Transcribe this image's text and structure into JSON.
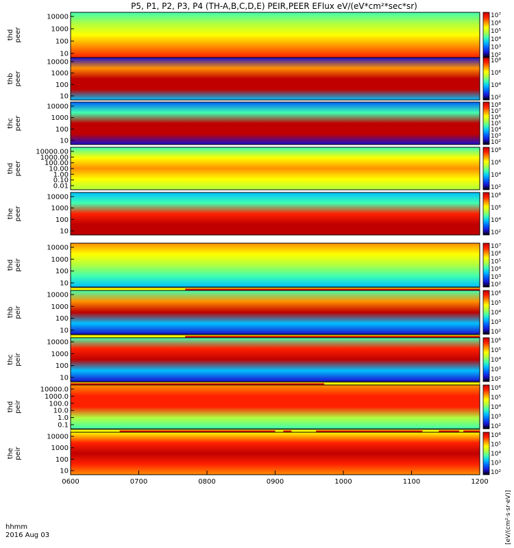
{
  "chart_data": {
    "type": "heatmap",
    "title": "P5, P1, P2, P3, P4 (TH-A,B,C,D,E) PEIR,PEER EFlux eV/(eV*cm²*sec*sr)",
    "time_label_line1": "hhmm",
    "time_label_line2": "2016 Aug 03",
    "x_ticks": [
      "0600",
      "0700",
      "0800",
      "0900",
      "1000",
      "1100",
      "1200"
    ],
    "colorbar_label": "[eV/(cm²·s·sr·eV)]",
    "colormap": [
      "#000000",
      "#1a10d0",
      "#0060ff",
      "#00c0ff",
      "#40ffb0",
      "#b0ff40",
      "#ffff00",
      "#ff9000",
      "#ff2000",
      "#c00000"
    ],
    "panels": [
      {
        "label": "thd peer",
        "y_ticks": [
          "10",
          "100",
          "1000",
          "10000"
        ],
        "cb_ticks": [
          "10²",
          "10³",
          "10⁴",
          "10⁵",
          "10⁶",
          "10⁷"
        ],
        "state_bar": false
      },
      {
        "label": "thb peer",
        "y_ticks": [
          "10",
          "100",
          "1000",
          "10000"
        ],
        "cb_ticks": [
          "10²",
          "10⁴",
          "10⁶",
          "10⁸"
        ],
        "state_bar": false
      },
      {
        "label": "thc peer",
        "y_ticks": [
          "10",
          "100",
          "1000",
          "10000"
        ],
        "cb_ticks": [
          "10²",
          "10³",
          "10⁴",
          "10⁵",
          "10⁶",
          "10⁷",
          "10⁸"
        ],
        "state_bar": false
      },
      {
        "label": "thd peer",
        "y_ticks": [
          "0.01",
          "0.10",
          "1.00",
          "10.00",
          "100.00",
          "1000.00",
          "10000.00"
        ],
        "cb_ticks": [
          "10²",
          "10⁴",
          "10⁶",
          "10⁸"
        ],
        "state_bar": false
      },
      {
        "label": "the peer",
        "y_ticks": [
          "10",
          "100",
          "1000",
          "10000"
        ],
        "cb_ticks": [
          "10²",
          "10⁴",
          "10⁶",
          "10⁸"
        ],
        "state_bar": false
      },
      {
        "label": "thd peir",
        "y_ticks": [
          "10",
          "100",
          "1000",
          "10000"
        ],
        "cb_ticks": [
          "10²",
          "10³",
          "10⁴",
          "10⁵",
          "10⁶",
          "10⁷"
        ],
        "state_bar": true,
        "state_on": [
          [
            0.28,
            1.0
          ]
        ]
      },
      {
        "label": "thb peir",
        "y_ticks": [
          "10",
          "100",
          "1000",
          "10000"
        ],
        "cb_ticks": [
          "10²",
          "10³",
          "10⁴",
          "10⁵",
          "10⁶"
        ],
        "state_bar": true,
        "state_on": [
          [
            0.28,
            1.0
          ]
        ]
      },
      {
        "label": "thc peir",
        "y_ticks": [
          "10",
          "100",
          "1000",
          "10000"
        ],
        "cb_ticks": [
          "10²",
          "10³",
          "10⁴",
          "10⁵",
          "10⁶"
        ],
        "state_bar": true,
        "state_on": [
          [
            0.0,
            0.62
          ]
        ]
      },
      {
        "label": "thd peir",
        "y_ticks": [
          "0.1",
          "1.0",
          "10.0",
          "100.0",
          "1000.0",
          "10000.0"
        ],
        "cb_ticks": [
          "10²",
          "10³",
          "10⁴",
          "10⁵",
          "10⁶"
        ],
        "state_bar": true,
        "state_on": [
          [
            0.12,
            0.5
          ],
          [
            0.52,
            0.54
          ],
          [
            0.6,
            0.86
          ],
          [
            0.9,
            0.95
          ],
          [
            0.96,
            1.0
          ]
        ]
      },
      {
        "label": "the peir",
        "y_ticks": [
          "10",
          "100",
          "1000",
          "10000"
        ],
        "cb_ticks": [
          "10²",
          "10³",
          "10⁴",
          "10⁵",
          "10⁶"
        ],
        "state_bar": false
      }
    ]
  }
}
